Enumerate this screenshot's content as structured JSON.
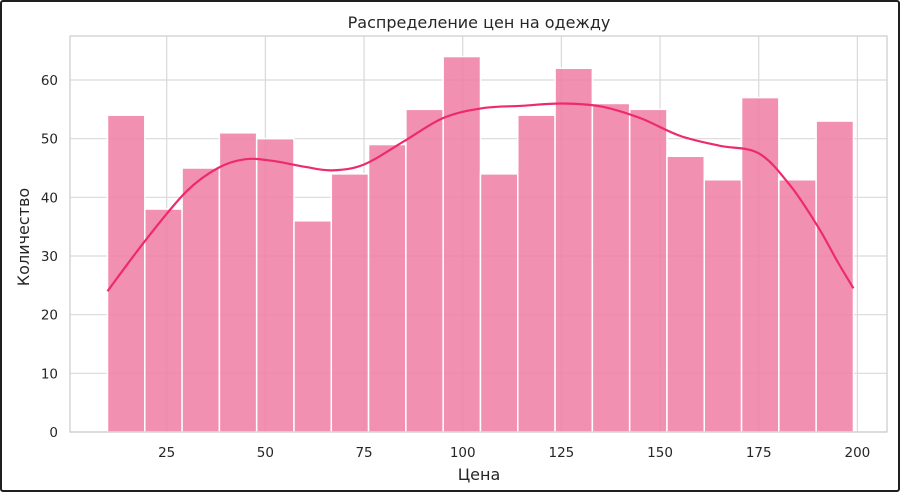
{
  "chart_data": {
    "type": "bar",
    "title": "Распределение цен на одежду",
    "xlabel": "Цена",
    "ylabel": "Количество",
    "xlim": [
      0.5,
      207.5
    ],
    "ylim": [
      0,
      67.5
    ],
    "xticks": [
      25,
      50,
      75,
      100,
      125,
      150,
      175,
      200
    ],
    "yticks": [
      0,
      10,
      20,
      30,
      40,
      50,
      60
    ],
    "grid": true,
    "bin_edges": [
      10,
      19.45,
      28.9,
      38.35,
      47.8,
      57.25,
      66.7,
      76.15,
      85.6,
      95.05,
      104.5,
      113.95,
      123.4,
      132.85,
      142.3,
      151.75,
      161.2,
      170.65,
      180.1,
      189.55,
      199
    ],
    "values": [
      54,
      38,
      45,
      51,
      50,
      36,
      44,
      49,
      55,
      64,
      44,
      54,
      62,
      56,
      55,
      47,
      43,
      57,
      43,
      53
    ],
    "kde": {
      "x": [
        10,
        20,
        30,
        38,
        45,
        52,
        60,
        67,
        75,
        85,
        95,
        105,
        115,
        125,
        135,
        145,
        155,
        165,
        175,
        183,
        190,
        195,
        199
      ],
      "y": [
        24,
        33,
        41,
        45,
        46.5,
        46.2,
        45.2,
        44.6,
        45.6,
        49.5,
        53.5,
        55.2,
        55.6,
        56,
        55.5,
        53.5,
        50.5,
        48.8,
        47.5,
        42,
        35,
        29,
        24.5
      ]
    },
    "colors": {
      "bar_fill": "#f07ca3",
      "bar_stroke": "#ffffff",
      "kde_line": "#ee2a6f",
      "grid": "#d9d9d9",
      "axes_edge": "#cccccc"
    }
  }
}
